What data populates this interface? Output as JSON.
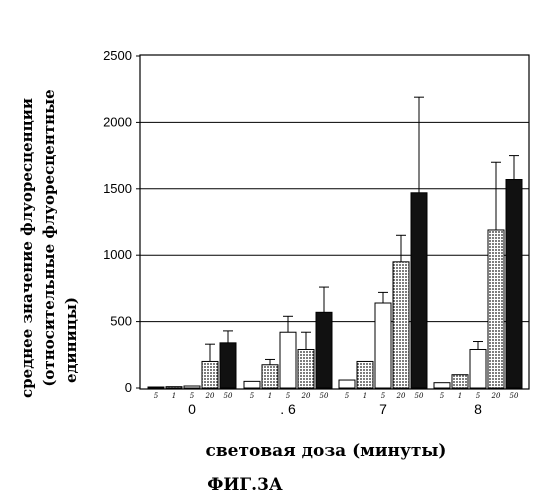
{
  "chart_data": {
    "type": "bar",
    "title": "",
    "figure_label": "ФИГ.3А",
    "xlabel": "световая доза (минуты)",
    "ylabel_lines": [
      "среднее значение флуоресценции",
      "(относительные флуоресцентные",
      "единицы)"
    ],
    "ylim": [
      0,
      2500
    ],
    "yticks": [
      "0",
      "500",
      "1000",
      "1500",
      "2000",
      "2500"
    ],
    "grid": true,
    "categories": [
      "0",
      ". 6",
      "7",
      "8"
    ],
    "series": [
      {
        "name": "5",
        "fill": "white",
        "values": [
          5,
          50,
          60,
          40
        ],
        "errors": [
          0,
          0,
          0,
          0
        ]
      },
      {
        "name": "1",
        "fill": "dots",
        "values": [
          10,
          175,
          200,
          100
        ],
        "errors": [
          0,
          40,
          0,
          0
        ]
      },
      {
        "name": "5",
        "fill": "white",
        "values": [
          15,
          420,
          640,
          290
        ],
        "errors": [
          0,
          120,
          80,
          60
        ]
      },
      {
        "name": "20",
        "fill": "dots",
        "values": [
          200,
          290,
          950,
          1190
        ],
        "errors": [
          130,
          130,
          200,
          510
        ]
      },
      {
        "name": "50",
        "fill": "black",
        "values": [
          340,
          570,
          1470,
          1570
        ],
        "errors": [
          90,
          190,
          720,
          180
        ]
      }
    ],
    "sub_labels": [
      [
        "5",
        "1",
        "5",
        "20",
        "50"
      ],
      [
        "5",
        "1",
        "5",
        "20",
        "50"
      ],
      [
        "5",
        "1",
        "5",
        "20",
        "50"
      ],
      [
        "5",
        "1",
        "5",
        "20",
        "50"
      ]
    ]
  }
}
